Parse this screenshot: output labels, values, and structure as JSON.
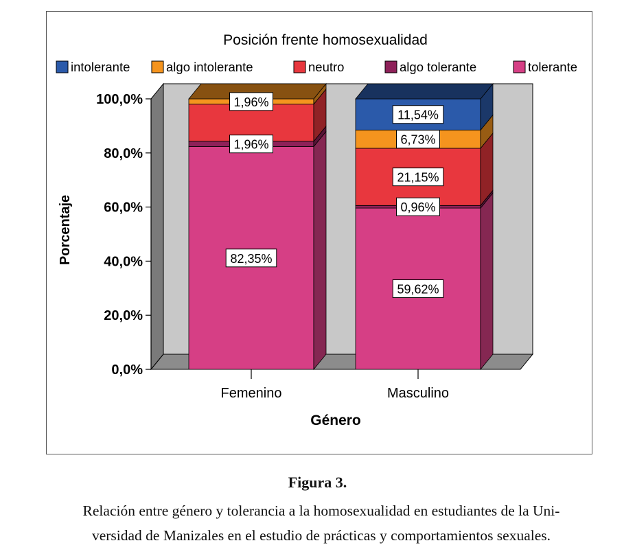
{
  "chart_data": {
    "type": "bar",
    "stacked": true,
    "percent": true,
    "three_d": true,
    "title": "Posición frente homosexualidad",
    "xlabel": "Género",
    "ylabel": "Porcentaje",
    "categories": [
      "Femenino",
      "Masculino"
    ],
    "ylim": [
      0,
      100
    ],
    "yticks": [
      "0,0%",
      "20,0%",
      "40,0%",
      "60,0%",
      "80,0%",
      "100,0%"
    ],
    "legend_position": "top",
    "series": [
      {
        "name": "tolerante",
        "values": [
          82.35,
          59.62
        ],
        "labels": [
          "82,35%",
          "59,62%"
        ],
        "color": "#d63f85"
      },
      {
        "name": "algo tolerante",
        "values": [
          1.96,
          0.96
        ],
        "labels": [
          "1,96%",
          "0,96%"
        ],
        "color": "#8e2159"
      },
      {
        "name": "neutro",
        "values": [
          13.73,
          21.15
        ],
        "labels": [
          "",
          "21,15%"
        ],
        "color": "#e8373e"
      },
      {
        "name": "algo intolerante",
        "values": [
          1.96,
          6.73
        ],
        "labels": [
          "1,96%",
          "6,73%"
        ],
        "color": "#f5941e"
      },
      {
        "name": "intolerante",
        "values": [
          0,
          11.54
        ],
        "labels": [
          "",
          "11,54%"
        ],
        "color": "#2b5aaa"
      }
    ],
    "legend_order": [
      "intolerante",
      "algo intolerante",
      "neutro",
      "algo tolerante",
      "tolerante"
    ]
  },
  "figure": {
    "label": "Figura 3.",
    "caption_line1": "Relación entre género y tolerancia a la homosexualidad en estudiantes de la Uni-",
    "caption_line2": "versidad de Manizales en el estudio de prácticas y comportamientos sexuales."
  }
}
